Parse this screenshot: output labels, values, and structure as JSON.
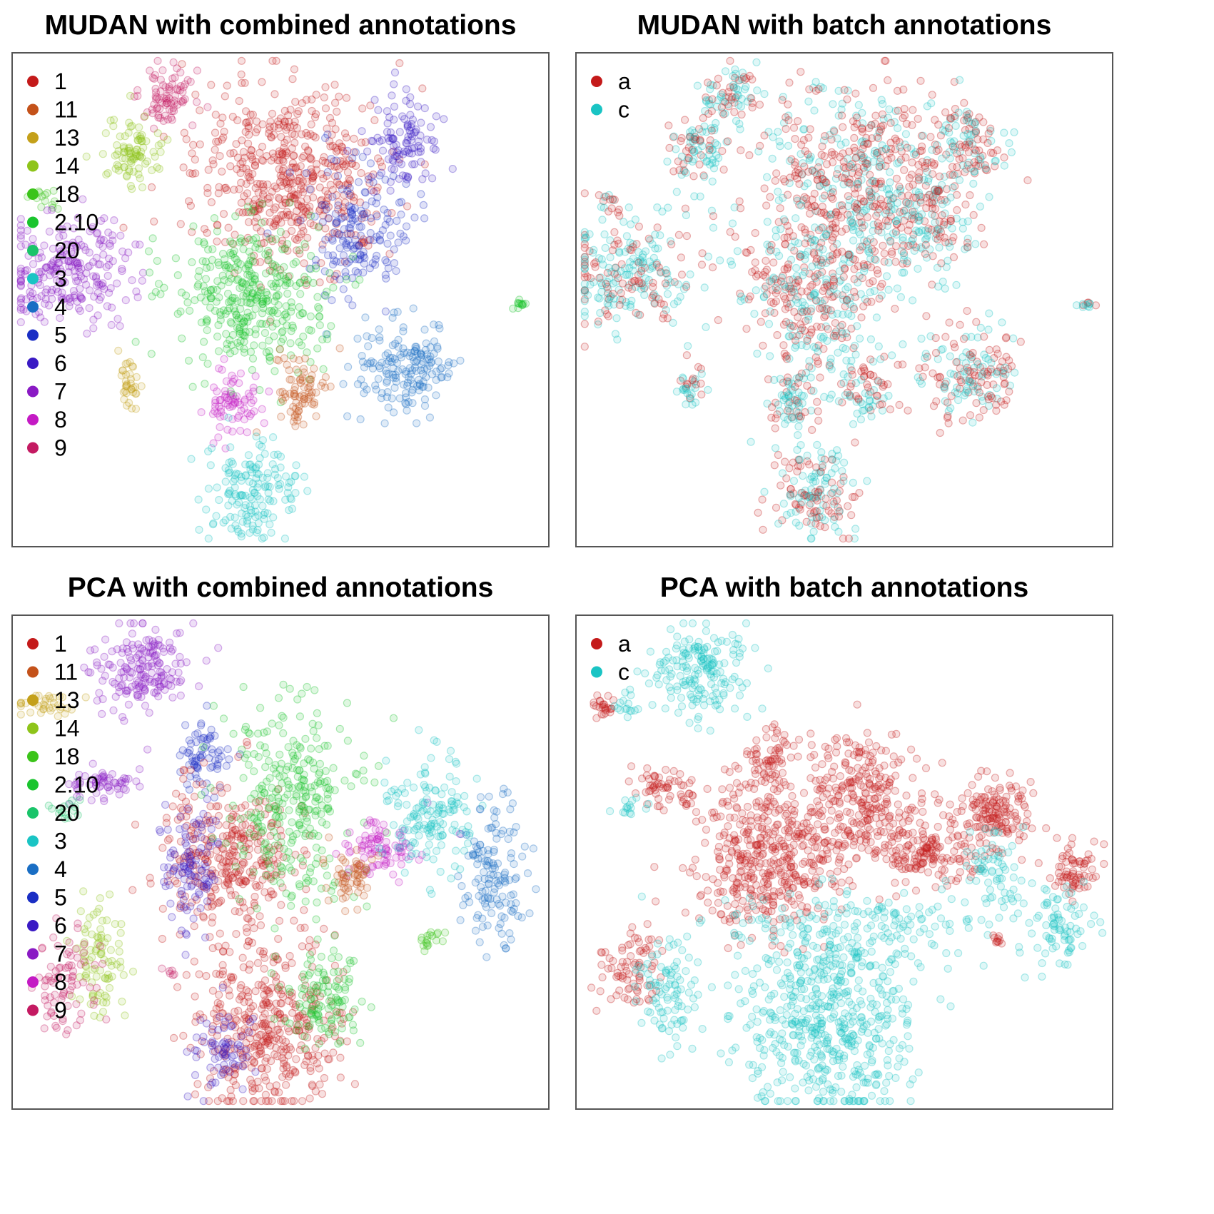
{
  "colors": {
    "1": "#c41a1a",
    "11": "#c4521a",
    "13": "#c4a01a",
    "14": "#8ec41a",
    "18": "#3bc41a",
    "2.10": "#1ac42e",
    "20": "#1ac46a",
    "3": "#1ac4c4",
    "4": "#1a6ec4",
    "5": "#1a2ec4",
    "6": "#3a1ac4",
    "7": "#8a1ac4",
    "8": "#c41ac4",
    "9": "#c41a62",
    "a": "#c41a1a",
    "c": "#1ac4c4"
  },
  "chart_data": [
    {
      "type": "scatter",
      "title": "MUDAN with combined annotations",
      "legend": [
        "1",
        "11",
        "13",
        "14",
        "18",
        "2.10",
        "20",
        "3",
        "4",
        "5",
        "6",
        "7",
        "8",
        "9"
      ],
      "legend_position": "top-left",
      "grid": false,
      "clusters": [
        {
          "label": "1",
          "cx": 0.52,
          "cy": 0.25,
          "sx": 0.09,
          "sy": 0.09,
          "n": 520
        },
        {
          "label": "9",
          "cx": 0.285,
          "cy": 0.085,
          "sx": 0.025,
          "sy": 0.03,
          "n": 80
        },
        {
          "label": "14",
          "cx": 0.225,
          "cy": 0.2,
          "sx": 0.03,
          "sy": 0.04,
          "n": 90
        },
        {
          "label": "18",
          "cx": 0.06,
          "cy": 0.3,
          "sx": 0.015,
          "sy": 0.015,
          "n": 14
        },
        {
          "label": "7",
          "cx": 0.1,
          "cy": 0.44,
          "sx": 0.06,
          "sy": 0.055,
          "n": 240
        },
        {
          "label": "6",
          "cx": 0.73,
          "cy": 0.18,
          "sx": 0.035,
          "sy": 0.045,
          "n": 110
        },
        {
          "label": "5",
          "cx": 0.645,
          "cy": 0.355,
          "sx": 0.045,
          "sy": 0.065,
          "n": 170
        },
        {
          "label": "2.10",
          "cx": 0.44,
          "cy": 0.49,
          "sx": 0.07,
          "sy": 0.075,
          "n": 370
        },
        {
          "label": "4",
          "cx": 0.735,
          "cy": 0.645,
          "sx": 0.045,
          "sy": 0.05,
          "n": 170
        },
        {
          "label": "11",
          "cx": 0.54,
          "cy": 0.685,
          "sx": 0.025,
          "sy": 0.04,
          "n": 80
        },
        {
          "label": "8",
          "cx": 0.41,
          "cy": 0.715,
          "sx": 0.025,
          "sy": 0.035,
          "n": 75
        },
        {
          "label": "13",
          "cx": 0.215,
          "cy": 0.675,
          "sx": 0.012,
          "sy": 0.03,
          "n": 35
        },
        {
          "label": "3",
          "cx": 0.445,
          "cy": 0.89,
          "sx": 0.04,
          "sy": 0.05,
          "n": 160
        },
        {
          "label": "2.10",
          "cx": 0.945,
          "cy": 0.51,
          "sx": 0.007,
          "sy": 0.004,
          "n": 12
        },
        {
          "label": "1",
          "cx": 0.335,
          "cy": 0.3,
          "sx": 0.004,
          "sy": 0.004,
          "n": 2
        }
      ]
    },
    {
      "type": "scatter",
      "title": "MUDAN with batch annotations",
      "legend": [
        "a",
        "c"
      ],
      "legend_position": "top-left",
      "grid": false,
      "clusters": [
        {
          "label": "c",
          "cx": 0.52,
          "cy": 0.25,
          "sx": 0.09,
          "sy": 0.09,
          "n": 320,
          "mix": 0.6
        },
        {
          "label": "a",
          "cx": 0.52,
          "cy": 0.25,
          "sx": 0.09,
          "sy": 0.09,
          "n": 200,
          "mix": 0
        },
        {
          "label": "a",
          "cx": 0.285,
          "cy": 0.085,
          "sx": 0.025,
          "sy": 0.03,
          "n": 80,
          "mix": 0.5
        },
        {
          "label": "a",
          "cx": 0.225,
          "cy": 0.2,
          "sx": 0.03,
          "sy": 0.04,
          "n": 90,
          "mix": 0.5
        },
        {
          "label": "a",
          "cx": 0.06,
          "cy": 0.3,
          "sx": 0.01,
          "sy": 0.012,
          "n": 14,
          "mix": 0.5
        },
        {
          "label": "c",
          "cx": 0.1,
          "cy": 0.44,
          "sx": 0.06,
          "sy": 0.055,
          "n": 240,
          "mix": 0.65
        },
        {
          "label": "a",
          "cx": 0.73,
          "cy": 0.18,
          "sx": 0.035,
          "sy": 0.045,
          "n": 110,
          "mix": 0.5
        },
        {
          "label": "a",
          "cx": 0.645,
          "cy": 0.355,
          "sx": 0.045,
          "sy": 0.065,
          "n": 170,
          "mix": 0.5
        },
        {
          "label": "a",
          "cx": 0.44,
          "cy": 0.49,
          "sx": 0.07,
          "sy": 0.075,
          "n": 370,
          "mix": 0.55
        },
        {
          "label": "a",
          "cx": 0.735,
          "cy": 0.645,
          "sx": 0.045,
          "sy": 0.05,
          "n": 170,
          "mix": 0.5
        },
        {
          "label": "a",
          "cx": 0.54,
          "cy": 0.685,
          "sx": 0.025,
          "sy": 0.04,
          "n": 80,
          "mix": 0.5
        },
        {
          "label": "a",
          "cx": 0.41,
          "cy": 0.715,
          "sx": 0.025,
          "sy": 0.035,
          "n": 75,
          "mix": 0.3
        },
        {
          "label": "a",
          "cx": 0.215,
          "cy": 0.675,
          "sx": 0.012,
          "sy": 0.03,
          "n": 35,
          "mix": 0.5
        },
        {
          "label": "a",
          "cx": 0.445,
          "cy": 0.89,
          "sx": 0.04,
          "sy": 0.05,
          "n": 160,
          "mix": 0.45
        },
        {
          "label": "c",
          "cx": 0.945,
          "cy": 0.51,
          "sx": 0.007,
          "sy": 0.004,
          "n": 12,
          "mix": 0.6
        }
      ]
    },
    {
      "type": "scatter",
      "title": "PCA with combined annotations",
      "legend": [
        "1",
        "11",
        "13",
        "14",
        "18",
        "2.10",
        "20",
        "3",
        "4",
        "5",
        "6",
        "7",
        "8",
        "9"
      ],
      "legend_position": "top-left",
      "grid": false,
      "clusters": [
        {
          "label": "7",
          "cx": 0.235,
          "cy": 0.11,
          "sx": 0.045,
          "sy": 0.045,
          "n": 180
        },
        {
          "label": "13",
          "cx": 0.065,
          "cy": 0.175,
          "sx": 0.03,
          "sy": 0.012,
          "n": 35
        },
        {
          "label": "7",
          "cx": 0.165,
          "cy": 0.345,
          "sx": 0.03,
          "sy": 0.02,
          "n": 60
        },
        {
          "label": "20",
          "cx": 0.1,
          "cy": 0.39,
          "sx": 0.015,
          "sy": 0.01,
          "n": 15
        },
        {
          "label": "5",
          "cx": 0.36,
          "cy": 0.29,
          "sx": 0.025,
          "sy": 0.035,
          "n": 70
        },
        {
          "label": "1",
          "cx": 0.4,
          "cy": 0.49,
          "sx": 0.06,
          "sy": 0.075,
          "n": 320
        },
        {
          "label": "6",
          "cx": 0.335,
          "cy": 0.49,
          "sx": 0.03,
          "sy": 0.06,
          "n": 110
        },
        {
          "label": "2.10",
          "cx": 0.52,
          "cy": 0.38,
          "sx": 0.06,
          "sy": 0.1,
          "n": 300
        },
        {
          "label": "8",
          "cx": 0.685,
          "cy": 0.47,
          "sx": 0.035,
          "sy": 0.03,
          "n": 90
        },
        {
          "label": "11",
          "cx": 0.635,
          "cy": 0.53,
          "sx": 0.02,
          "sy": 0.03,
          "n": 60
        },
        {
          "label": "3",
          "cx": 0.775,
          "cy": 0.4,
          "sx": 0.04,
          "sy": 0.06,
          "n": 150
        },
        {
          "label": "4",
          "cx": 0.9,
          "cy": 0.52,
          "sx": 0.03,
          "sy": 0.07,
          "n": 140
        },
        {
          "label": "18",
          "cx": 0.78,
          "cy": 0.66,
          "sx": 0.012,
          "sy": 0.012,
          "n": 18
        },
        {
          "label": "14",
          "cx": 0.165,
          "cy": 0.7,
          "sx": 0.025,
          "sy": 0.06,
          "n": 90
        },
        {
          "label": "9",
          "cx": 0.1,
          "cy": 0.75,
          "sx": 0.03,
          "sy": 0.05,
          "n": 80
        },
        {
          "label": "1",
          "cx": 0.47,
          "cy": 0.83,
          "sx": 0.07,
          "sy": 0.09,
          "n": 420
        },
        {
          "label": "2.10",
          "cx": 0.585,
          "cy": 0.78,
          "sx": 0.04,
          "sy": 0.05,
          "n": 120
        },
        {
          "label": "6",
          "cx": 0.39,
          "cy": 0.89,
          "sx": 0.03,
          "sy": 0.04,
          "n": 70
        },
        {
          "label": "9",
          "cx": 0.295,
          "cy": 0.725,
          "sx": 0.01,
          "sy": 0.006,
          "n": 6
        }
      ]
    },
    {
      "type": "scatter",
      "title": "PCA with batch annotations",
      "legend": [
        "a",
        "c"
      ],
      "legend_position": "top-left",
      "grid": false,
      "clusters": [
        {
          "label": "c",
          "cx": 0.235,
          "cy": 0.11,
          "sx": 0.045,
          "sy": 0.045,
          "n": 180
        },
        {
          "label": "a",
          "cx": 0.05,
          "cy": 0.185,
          "sx": 0.012,
          "sy": 0.012,
          "n": 25
        },
        {
          "label": "c",
          "cx": 0.09,
          "cy": 0.185,
          "sx": 0.012,
          "sy": 0.012,
          "n": 15
        },
        {
          "label": "a",
          "cx": 0.165,
          "cy": 0.345,
          "sx": 0.03,
          "sy": 0.02,
          "n": 60
        },
        {
          "label": "c",
          "cx": 0.1,
          "cy": 0.39,
          "sx": 0.015,
          "sy": 0.01,
          "n": 15
        },
        {
          "label": "a",
          "cx": 0.36,
          "cy": 0.29,
          "sx": 0.025,
          "sy": 0.035,
          "n": 70
        },
        {
          "label": "a",
          "cx": 0.36,
          "cy": 0.49,
          "sx": 0.07,
          "sy": 0.075,
          "n": 430
        },
        {
          "label": "a",
          "cx": 0.52,
          "cy": 0.38,
          "sx": 0.06,
          "sy": 0.07,
          "n": 300
        },
        {
          "label": "a",
          "cx": 0.66,
          "cy": 0.48,
          "sx": 0.04,
          "sy": 0.03,
          "n": 150
        },
        {
          "label": "a",
          "cx": 0.78,
          "cy": 0.4,
          "sx": 0.035,
          "sy": 0.035,
          "n": 150
        },
        {
          "label": "c",
          "cx": 0.78,
          "cy": 0.52,
          "sx": 0.03,
          "sy": 0.05,
          "n": 70
        },
        {
          "label": "a",
          "cx": 0.93,
          "cy": 0.52,
          "sx": 0.025,
          "sy": 0.025,
          "n": 70
        },
        {
          "label": "c",
          "cx": 0.9,
          "cy": 0.63,
          "sx": 0.03,
          "sy": 0.04,
          "n": 80
        },
        {
          "label": "a",
          "cx": 0.785,
          "cy": 0.66,
          "sx": 0.007,
          "sy": 0.008,
          "n": 10
        },
        {
          "label": "a",
          "cx": 0.1,
          "cy": 0.71,
          "sx": 0.03,
          "sy": 0.04,
          "n": 80
        },
        {
          "label": "c",
          "cx": 0.165,
          "cy": 0.77,
          "sx": 0.025,
          "sy": 0.05,
          "n": 90
        },
        {
          "label": "c",
          "cx": 0.47,
          "cy": 0.82,
          "sx": 0.08,
          "sy": 0.1,
          "n": 540
        },
        {
          "label": "c",
          "cx": 0.52,
          "cy": 0.63,
          "sx": 0.12,
          "sy": 0.04,
          "n": 160
        }
      ]
    }
  ]
}
